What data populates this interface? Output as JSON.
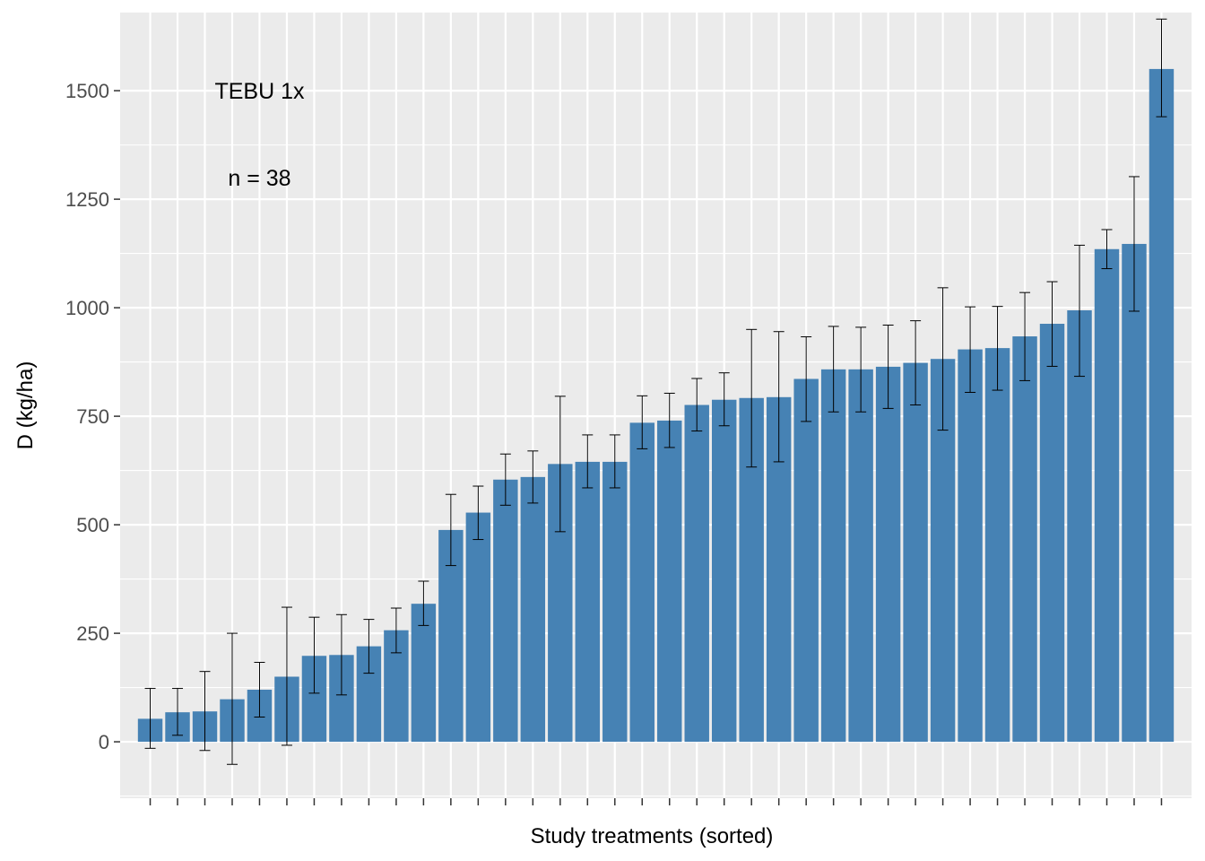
{
  "chart_data": {
    "type": "bar",
    "xlabel": "Study treatments (sorted)",
    "ylabel": "D (kg/ha)",
    "ylim": [
      -130,
      1680
    ],
    "yticks": [
      0,
      250,
      500,
      750,
      1000,
      1250,
      1500
    ],
    "grid": true,
    "colors": {
      "bar": "#4682b4",
      "panel": "#ebebeb",
      "grid": "#ffffff",
      "errorbar": "#000000"
    },
    "annotations": [
      {
        "text": "TEBU 1x",
        "x": 5,
        "y": 1500
      },
      {
        "text": "n = 38",
        "x": 5,
        "y": 1300
      }
    ],
    "values": [
      53,
      68,
      70,
      98,
      120,
      150,
      198,
      200,
      220,
      257,
      318,
      488,
      528,
      604,
      610,
      640,
      645,
      645,
      735,
      740,
      776,
      788,
      792,
      794,
      836,
      858,
      858,
      864,
      873,
      882,
      904,
      907,
      934,
      963,
      994,
      1135,
      1147,
      1550
    ],
    "err_low": [
      -15,
      15,
      -20,
      -52,
      57,
      -8,
      112,
      108,
      158,
      205,
      268,
      406,
      466,
      545,
      550,
      484,
      585,
      585,
      675,
      678,
      716,
      728,
      633,
      645,
      738,
      760,
      760,
      768,
      776,
      718,
      805,
      810,
      832,
      865,
      842,
      1090,
      992,
      1440
    ],
    "err_high": [
      123,
      123,
      162,
      250,
      183,
      310,
      287,
      293,
      282,
      308,
      370,
      570,
      589,
      663,
      670,
      796,
      707,
      707,
      797,
      803,
      837,
      850,
      950,
      945,
      933,
      957,
      955,
      960,
      970,
      1046,
      1002,
      1003,
      1035,
      1060,
      1144,
      1180,
      1302,
      1665
    ]
  }
}
